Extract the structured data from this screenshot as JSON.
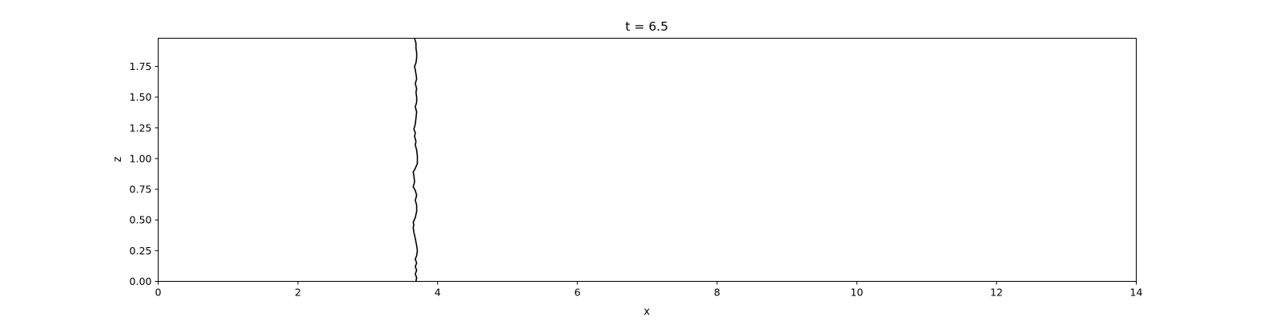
{
  "chart_data": {
    "type": "line",
    "title": "t = 6.5",
    "xlabel": "x",
    "ylabel": "z",
    "xlim": [
      0,
      14
    ],
    "ylim": [
      0,
      1.98
    ],
    "xticks": [
      0,
      2,
      4,
      6,
      8,
      10,
      12,
      14
    ],
    "xtick_labels": [
      "0",
      "2",
      "4",
      "6",
      "8",
      "10",
      "12",
      "14"
    ],
    "yticks": [
      0,
      0.25,
      0.5,
      0.75,
      1.0,
      1.25,
      1.5,
      1.75
    ],
    "ytick_labels": [
      "0.00",
      "0.25",
      "0.50",
      "0.75",
      "1.00",
      "1.25",
      "1.50",
      "1.75"
    ],
    "grid": false,
    "series": [
      {
        "color": "#000000",
        "points": [
          [
            3.69,
            0.0
          ],
          [
            3.7,
            0.03
          ],
          [
            3.68,
            0.06
          ],
          [
            3.7,
            0.09
          ],
          [
            3.68,
            0.12
          ],
          [
            3.7,
            0.15
          ],
          [
            3.68,
            0.18
          ],
          [
            3.7,
            0.21
          ],
          [
            3.71,
            0.25
          ],
          [
            3.7,
            0.29
          ],
          [
            3.68,
            0.35
          ],
          [
            3.66,
            0.4
          ],
          [
            3.65,
            0.44
          ],
          [
            3.66,
            0.46
          ],
          [
            3.65,
            0.48
          ],
          [
            3.68,
            0.52
          ],
          [
            3.7,
            0.57
          ],
          [
            3.7,
            0.62
          ],
          [
            3.68,
            0.66
          ],
          [
            3.7,
            0.7
          ],
          [
            3.68,
            0.74
          ],
          [
            3.65,
            0.77
          ],
          [
            3.67,
            0.81
          ],
          [
            3.66,
            0.86
          ],
          [
            3.65,
            0.89
          ],
          [
            3.68,
            0.92
          ],
          [
            3.71,
            0.96
          ],
          [
            3.71,
            1.02
          ],
          [
            3.7,
            1.07
          ],
          [
            3.68,
            1.11
          ],
          [
            3.69,
            1.14
          ],
          [
            3.67,
            1.18
          ],
          [
            3.68,
            1.21
          ],
          [
            3.66,
            1.24
          ],
          [
            3.68,
            1.28
          ],
          [
            3.69,
            1.33
          ],
          [
            3.7,
            1.38
          ],
          [
            3.68,
            1.42
          ],
          [
            3.7,
            1.46
          ],
          [
            3.7,
            1.5
          ],
          [
            3.69,
            1.54
          ],
          [
            3.7,
            1.57
          ],
          [
            3.68,
            1.61
          ],
          [
            3.7,
            1.65
          ],
          [
            3.69,
            1.69
          ],
          [
            3.68,
            1.72
          ],
          [
            3.67,
            1.75
          ],
          [
            3.69,
            1.78
          ],
          [
            3.7,
            1.82
          ],
          [
            3.7,
            1.86
          ],
          [
            3.69,
            1.9
          ],
          [
            3.69,
            1.94
          ],
          [
            3.67,
            1.98
          ]
        ]
      }
    ]
  }
}
